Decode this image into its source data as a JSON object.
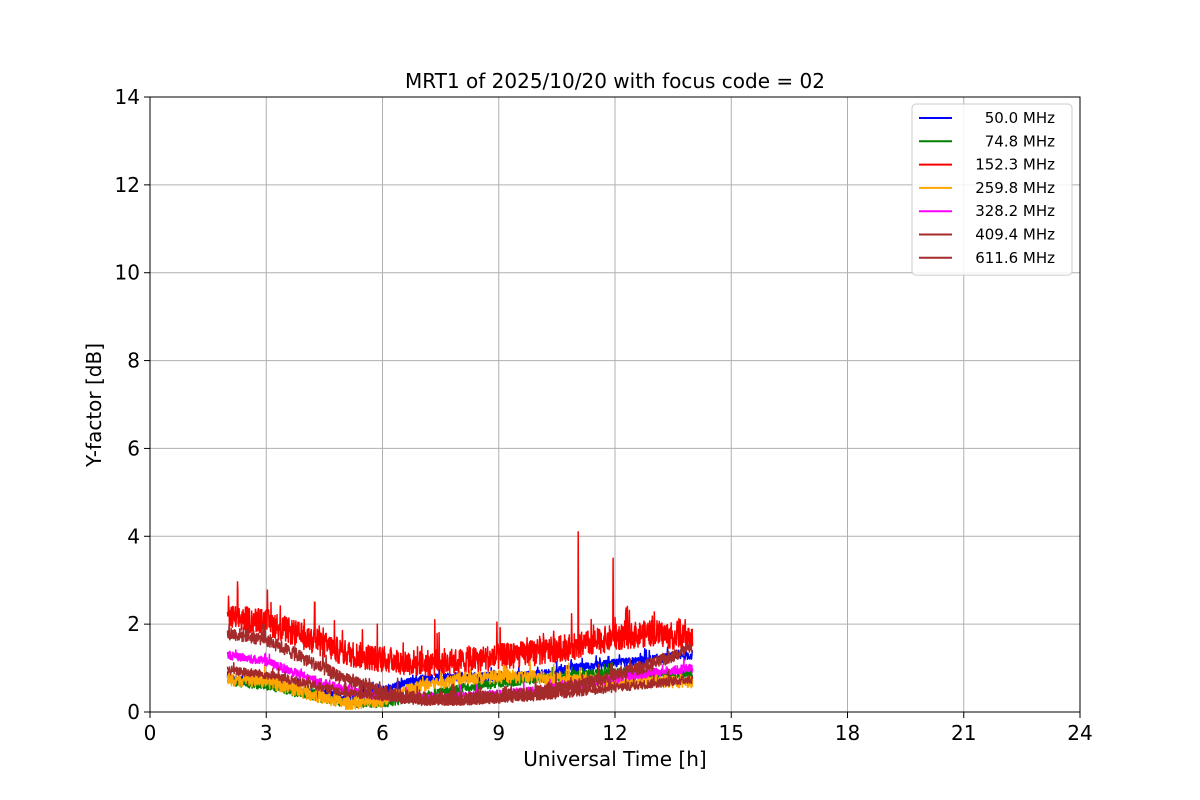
{
  "chart_data": {
    "type": "line",
    "title": "MRT1 of 2025/10/20 with focus code = 02",
    "xlabel": "Universal Time [h]",
    "ylabel": "Y-factor [dB]",
    "xlim": [
      0,
      24
    ],
    "ylim": [
      0,
      14
    ],
    "xticks": [
      0,
      3,
      6,
      9,
      12,
      15,
      18,
      21,
      24
    ],
    "yticks": [
      0,
      2,
      4,
      6,
      8,
      10,
      12,
      14
    ],
    "grid": true,
    "legend_position": "top-right",
    "series": [
      {
        "name": "50.0 MHz",
        "color": "#0000ff",
        "noise": 0.1,
        "x": [
          2.0,
          3.0,
          4.0,
          5.0,
          6.0,
          7.0,
          8.0,
          9.0,
          10.0,
          11.0,
          12.0,
          13.0,
          14.0
        ],
        "y": [
          0.75,
          0.65,
          0.45,
          0.35,
          0.5,
          0.75,
          0.8,
          0.8,
          0.85,
          1.0,
          1.1,
          1.2,
          1.3
        ]
      },
      {
        "name": "74.8 MHz",
        "color": "#008000",
        "noise": 0.1,
        "x": [
          2.0,
          3.0,
          4.0,
          5.0,
          6.0,
          7.0,
          8.0,
          9.0,
          10.0,
          11.0,
          12.0,
          13.0,
          14.0
        ],
        "y": [
          0.7,
          0.6,
          0.4,
          0.2,
          0.2,
          0.35,
          0.55,
          0.65,
          0.75,
          0.85,
          0.9,
          0.85,
          0.85
        ]
      },
      {
        "name": "152.3 MHz",
        "color": "#ff0000",
        "noise": 0.3,
        "x": [
          2.0,
          3.0,
          4.0,
          5.0,
          6.0,
          7.0,
          8.0,
          9.0,
          10.0,
          11.0,
          12.0,
          13.0,
          14.0
        ],
        "y": [
          2.15,
          2.05,
          1.7,
          1.35,
          1.2,
          1.1,
          1.15,
          1.25,
          1.35,
          1.5,
          1.7,
          1.8,
          1.65
        ]
      },
      {
        "name": "259.8 MHz",
        "color": "#ffa500",
        "noise": 0.15,
        "x": [
          2.0,
          3.0,
          4.0,
          5.0,
          6.0,
          7.0,
          8.0,
          9.0,
          10.0,
          11.0,
          12.0,
          13.0,
          14.0
        ],
        "y": [
          0.75,
          0.7,
          0.45,
          0.2,
          0.25,
          0.6,
          0.75,
          0.8,
          0.8,
          0.7,
          0.7,
          0.7,
          0.7
        ]
      },
      {
        "name": "328.2 MHz",
        "color": "#ff00ff",
        "noise": 0.1,
        "x": [
          2.0,
          3.0,
          4.0,
          5.0,
          6.0,
          7.0,
          8.0,
          9.0,
          10.0,
          11.0,
          12.0,
          13.0,
          14.0
        ],
        "y": [
          1.3,
          1.15,
          0.8,
          0.5,
          0.35,
          0.3,
          0.35,
          0.4,
          0.5,
          0.6,
          0.75,
          0.9,
          1.0
        ]
      },
      {
        "name": "409.4 MHz",
        "color": "#a52a2a",
        "noise": 0.1,
        "x": [
          2.0,
          3.0,
          4.0,
          5.0,
          6.0,
          7.0,
          8.0,
          9.0,
          10.0,
          11.0,
          12.0,
          13.0,
          14.0
        ],
        "y": [
          0.95,
          0.85,
          0.65,
          0.45,
          0.35,
          0.25,
          0.25,
          0.3,
          0.35,
          0.45,
          0.55,
          0.65,
          0.75
        ]
      },
      {
        "name": "611.6 MHz",
        "color": "#a52a2a",
        "noise": 0.15,
        "x": [
          2.0,
          3.0,
          4.0,
          5.0,
          6.0,
          7.0,
          8.0,
          9.0,
          10.0,
          11.0,
          12.0,
          13.0,
          14.0
        ],
        "y": [
          1.8,
          1.65,
          1.2,
          0.75,
          0.45,
          0.3,
          0.3,
          0.35,
          0.45,
          0.6,
          0.85,
          1.1,
          1.45
        ]
      }
    ],
    "spikes": [
      {
        "series": "152.3 MHz",
        "x": 7.35,
        "y": 2.1
      },
      {
        "series": "152.3 MHz",
        "x": 11.05,
        "y": 4.1
      },
      {
        "series": "152.3 MHz",
        "x": 11.95,
        "y": 3.5
      },
      {
        "series": "152.3 MHz",
        "x": 4.25,
        "y": 2.5
      }
    ]
  }
}
